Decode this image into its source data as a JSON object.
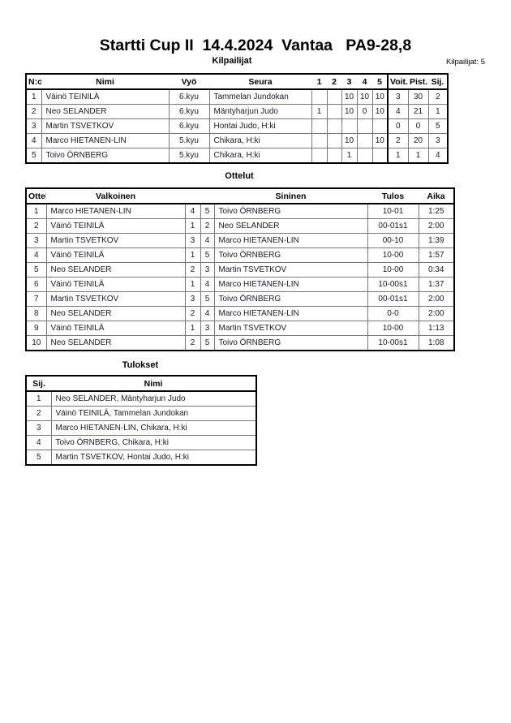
{
  "title": "Startti Cup II  14.4.2024  Vantaa   PA9-28,8",
  "competitors": {
    "heading": "Kilpailijat",
    "count_label": "Kilpailijat: 5",
    "columns": [
      "N:o",
      "Nimi",
      "Vyö",
      "Seura",
      "1",
      "2",
      "3",
      "4",
      "5",
      "Voit.",
      "Pist.",
      "Sij."
    ],
    "rows": [
      [
        "1",
        "Väinö TEINILÄ",
        "6.kyu",
        "Tammelan Jundokan",
        "",
        "",
        "10",
        "10",
        "10",
        "3",
        "30",
        "2"
      ],
      [
        "2",
        "Neo SELANDER",
        "6.kyu",
        "Mäntyharjun Judo",
        "1",
        "",
        "10",
        "0",
        "10",
        "4",
        "21",
        "1"
      ],
      [
        "3",
        "Martin TSVETKOV",
        "6.kyu",
        "Hontai Judo, H:ki",
        "",
        "",
        "",
        "",
        "",
        "0",
        "0",
        "5"
      ],
      [
        "4",
        "Marco HIETANEN-LIN",
        "5.kyu",
        "Chikara, H:ki",
        "",
        "",
        "10",
        "",
        "10",
        "2",
        "20",
        "3"
      ],
      [
        "5",
        "Toivo ÖRNBERG",
        "5.kyu",
        "Chikara, H:ki",
        "",
        "",
        "1",
        "",
        "",
        "1",
        "1",
        "4"
      ]
    ]
  },
  "matches": {
    "heading": "Ottelut",
    "columns": [
      "Ottelu",
      "Valkoinen",
      "",
      "",
      "Sininen",
      "Tulos",
      "Aika"
    ],
    "rows": [
      [
        "1",
        "Marco HIETANEN-LIN",
        "4",
        "5",
        "Toivo ÖRNBERG",
        "10-01",
        "1:25"
      ],
      [
        "2",
        "Väinö TEINILÄ",
        "1",
        "2",
        "Neo SELANDER",
        "00-01s1",
        "2:00"
      ],
      [
        "3",
        "Martin TSVETKOV",
        "3",
        "4",
        "Marco HIETANEN-LIN",
        "00-10",
        "1:39"
      ],
      [
        "4",
        "Väinö TEINILÄ",
        "1",
        "5",
        "Toivo ÖRNBERG",
        "10-00",
        "1:57"
      ],
      [
        "5",
        "Neo SELANDER",
        "2",
        "3",
        "Martin TSVETKOV",
        "10-00",
        "0:34"
      ],
      [
        "6",
        "Väinö TEINILÄ",
        "1",
        "4",
        "Marco HIETANEN-LIN",
        "10-00s1",
        "1:37"
      ],
      [
        "7",
        "Martin TSVETKOV",
        "3",
        "5",
        "Toivo ÖRNBERG",
        "00-01s1",
        "2:00"
      ],
      [
        "8",
        "Neo SELANDER",
        "2",
        "4",
        "Marco HIETANEN-LIN",
        "0-0",
        "2:00"
      ],
      [
        "9",
        "Väinö TEINILÄ",
        "1",
        "3",
        "Martin TSVETKOV",
        "10-00",
        "1:13"
      ],
      [
        "10",
        "Neo SELANDER",
        "2",
        "5",
        "Toivo ÖRNBERG",
        "10-00s1",
        "1:08"
      ]
    ]
  },
  "results": {
    "heading": "Tulokset",
    "columns": [
      "Sij.",
      "Nimi"
    ],
    "rows": [
      [
        "1",
        "Neo SELANDER, Mäntyharjun Judo"
      ],
      [
        "2",
        "Väinö TEINILÄ, Tammelan Jundokan"
      ],
      [
        "3",
        "Marco HIETANEN-LIN, Chikara, H:ki"
      ],
      [
        "4",
        "Toivo ÖRNBERG, Chikara, H:ki"
      ],
      [
        "5",
        "Martin TSVETKOV, Hontai Judo, H:ki"
      ]
    ]
  }
}
